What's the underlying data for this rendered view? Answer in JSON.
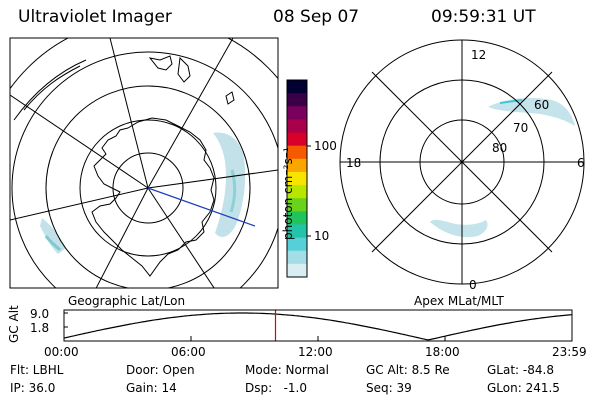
{
  "header": {
    "title": "Ultraviolet Imager",
    "date": "08 Sep 07",
    "time": "09:59:31 UT"
  },
  "left_panel": {
    "caption": "Geographic Lat/Lon"
  },
  "right_panel": {
    "caption": "Apex MLat/MLT",
    "mlt_labels": [
      "12",
      "18",
      "6",
      "0"
    ],
    "lat_labels": [
      "60",
      "70",
      "80"
    ]
  },
  "colorbar": {
    "unit_label": "photon cm⁻²s⁻¹",
    "ticks": [
      "100",
      "10"
    ],
    "colors": [
      "#000033",
      "#3a0047",
      "#7a005e",
      "#a8004a",
      "#d8002a",
      "#f55a00",
      "#fba600",
      "#f7e400",
      "#b9e600",
      "#6ad21a",
      "#21c45c",
      "#22c3a6",
      "#57cfd8",
      "#a3dde6",
      "#d8eef2"
    ]
  },
  "timeline": {
    "y_label": "GC Alt",
    "y_ticks": [
      "9.0",
      "1.8"
    ],
    "x_ticks": [
      "00:00",
      "06:00",
      "12:00",
      "18:00",
      "23:59"
    ],
    "marker_time": "09:59:31",
    "marker_color": "#e00000"
  },
  "info": {
    "flt": "Flt: LBHL",
    "door": "Door: Open",
    "mode": "Mode: Normal",
    "gc_alt": "GC Alt: 8.5 Re",
    "glat": "GLat: -84.8",
    "ip": "IP: 36.0",
    "gain": "Gain: 14",
    "dsp": "Dsp:   -1.0",
    "seq": "Seq: 39",
    "glon": "GLon: 241.5"
  }
}
